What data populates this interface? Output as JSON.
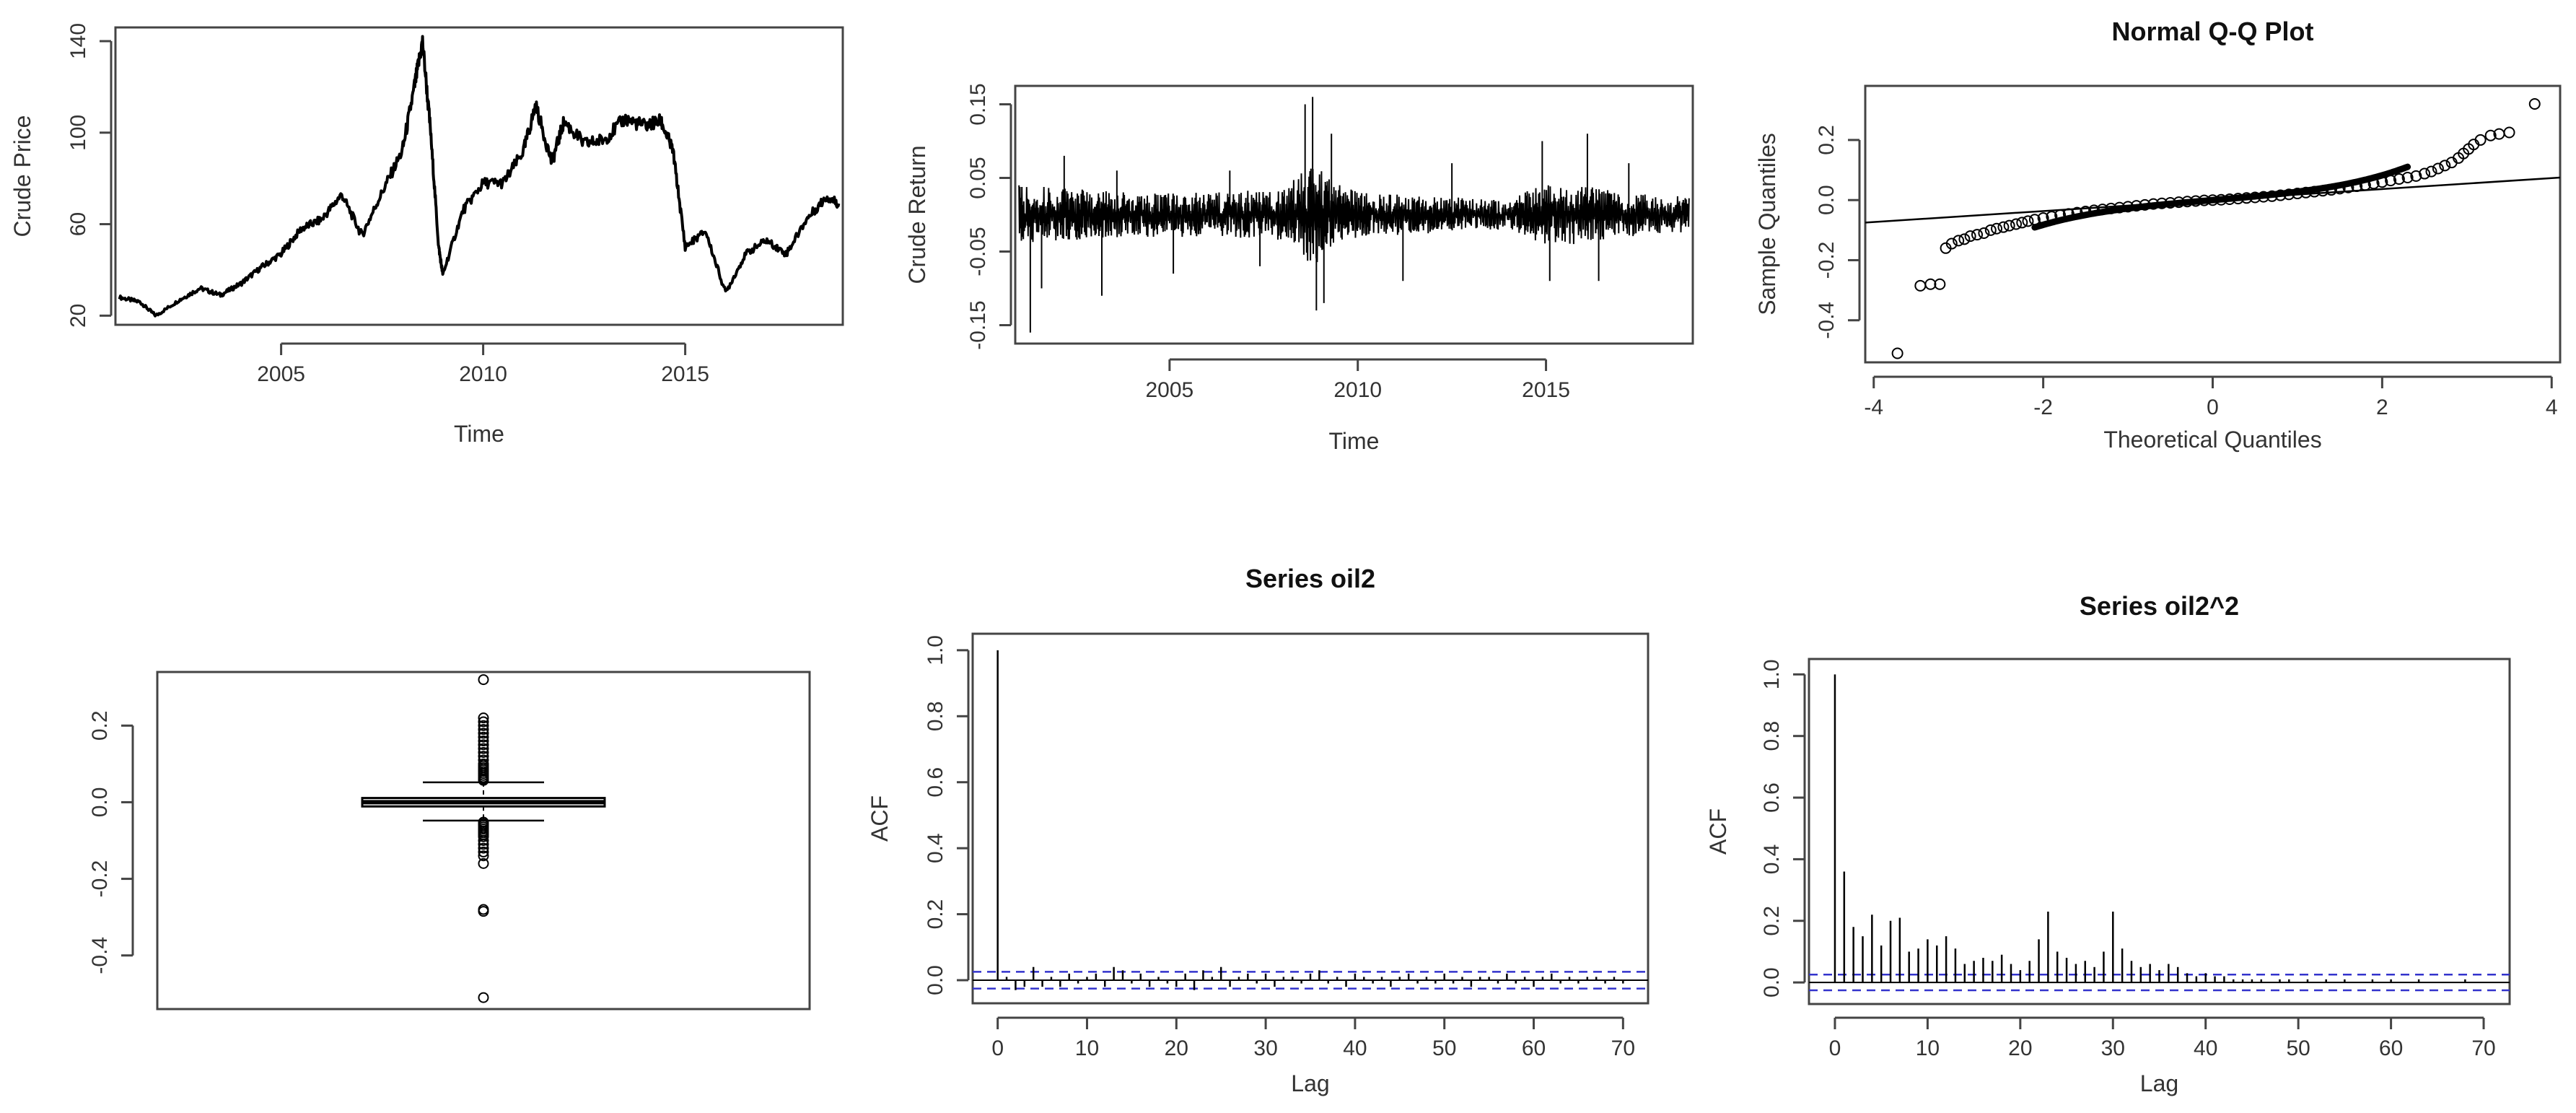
{
  "colors": {
    "ink": "#000000",
    "axis": "#444444",
    "ci": "#3333cc",
    "label": "#333333"
  },
  "chart_data": [
    {
      "id": "price",
      "type": "line",
      "title": "",
      "xlabel": "Time",
      "ylabel": "Crude Price",
      "xlim": [
        2000.9,
        2018.9
      ],
      "ylim": [
        16,
        146
      ],
      "xticks": [
        2005,
        2010,
        2015
      ],
      "yticks": [
        20,
        60,
        100,
        140
      ],
      "x": [
        2001.0,
        2001.5,
        2001.9,
        2002.5,
        2003.0,
        2003.5,
        2004.0,
        2004.5,
        2005.0,
        2005.5,
        2006.0,
        2006.5,
        2007.0,
        2007.5,
        2008.0,
        2008.3,
        2008.5,
        2008.7,
        2008.9,
        2009.0,
        2009.5,
        2010.0,
        2010.5,
        2011.0,
        2011.3,
        2011.7,
        2012.0,
        2012.5,
        2013.0,
        2013.5,
        2014.0,
        2014.4,
        2014.7,
        2015.0,
        2015.5,
        2016.0,
        2016.5,
        2017.0,
        2017.5,
        2018.0,
        2018.5,
        2018.8
      ],
      "y": [
        28,
        26,
        20,
        27,
        32,
        29,
        34,
        41,
        47,
        58,
        62,
        73,
        55,
        74,
        92,
        120,
        140,
        100,
        50,
        38,
        66,
        78,
        78,
        92,
        112,
        87,
        105,
        95,
        97,
        106,
        103,
        105,
        92,
        50,
        57,
        30,
        47,
        53,
        47,
        62,
        72,
        69
      ]
    },
    {
      "id": "returns",
      "type": "line",
      "title": "",
      "xlabel": "Time",
      "ylabel": "Crude Return",
      "xlim": [
        2000.9,
        2018.9
      ],
      "ylim": [
        -0.175,
        0.175
      ],
      "xticks": [
        2005,
        2010,
        2015
      ],
      "yticks": [
        -0.15,
        -0.05,
        0.05,
        0.15
      ],
      "band": [
        [
          2001,
          0.04
        ],
        [
          2002.5,
          0.035
        ],
        [
          2004,
          0.03
        ],
        [
          2006,
          0.03
        ],
        [
          2008,
          0.035
        ],
        [
          2008.8,
          0.07
        ],
        [
          2009.3,
          0.05
        ],
        [
          2010,
          0.03
        ],
        [
          2012,
          0.025
        ],
        [
          2014,
          0.02
        ],
        [
          2014.8,
          0.04
        ],
        [
          2016,
          0.04
        ],
        [
          2017,
          0.03
        ],
        [
          2018.8,
          0.025
        ]
      ],
      "spikes": [
        [
          2001.3,
          -0.16
        ],
        [
          2001.6,
          -0.1
        ],
        [
          2002.2,
          0.08
        ],
        [
          2003.2,
          -0.11
        ],
        [
          2003.6,
          0.06
        ],
        [
          2005.1,
          -0.08
        ],
        [
          2006.6,
          0.06
        ],
        [
          2007.4,
          -0.07
        ],
        [
          2008.6,
          0.15
        ],
        [
          2008.8,
          0.16
        ],
        [
          2008.9,
          -0.13
        ],
        [
          2009.1,
          -0.12
        ],
        [
          2009.3,
          0.11
        ],
        [
          2011.2,
          -0.09
        ],
        [
          2012.5,
          0.07
        ],
        [
          2014.9,
          0.1
        ],
        [
          2015.1,
          -0.09
        ],
        [
          2016.1,
          0.11
        ],
        [
          2016.4,
          -0.09
        ],
        [
          2017.2,
          0.07
        ]
      ]
    },
    {
      "id": "qq",
      "type": "scatter",
      "title": "Normal Q-Q Plot",
      "xlabel": "Theoretical Quantiles",
      "ylabel": "Sample Quantiles",
      "xlim": [
        -4.1,
        4.1
      ],
      "ylim": [
        -0.54,
        0.38
      ],
      "xticks": [
        -4,
        -2,
        0,
        2,
        4
      ],
      "yticks": [
        -0.4,
        -0.2,
        0.0,
        0.2
      ],
      "line": [
        [
          -4.1,
          -0.075
        ],
        [
          4.1,
          0.075
        ]
      ],
      "points": [
        [
          -3.72,
          -0.51
        ],
        [
          -3.45,
          -0.285
        ],
        [
          -3.33,
          -0.28
        ],
        [
          -3.22,
          -0.28
        ],
        [
          -3.15,
          -0.16
        ],
        [
          -3.08,
          -0.145
        ],
        [
          -3.0,
          -0.135
        ],
        [
          -2.93,
          -0.13
        ],
        [
          -2.86,
          -0.12
        ],
        [
          -2.78,
          -0.115
        ],
        [
          -2.7,
          -0.11
        ],
        [
          -2.62,
          -0.1
        ],
        [
          -2.55,
          -0.095
        ],
        [
          -2.47,
          -0.09
        ],
        [
          -2.4,
          -0.085
        ],
        [
          -2.32,
          -0.08
        ],
        [
          -2.25,
          -0.075
        ],
        [
          -2.18,
          -0.07
        ],
        [
          -2.1,
          -0.065
        ],
        [
          -2.0,
          -0.06
        ],
        [
          -1.9,
          -0.055
        ],
        [
          -1.8,
          -0.05
        ],
        [
          -1.7,
          -0.046
        ],
        [
          -1.6,
          -0.042
        ],
        [
          -1.5,
          -0.038
        ],
        [
          -1.4,
          -0.034
        ],
        [
          -1.3,
          -0.031
        ],
        [
          -1.2,
          -0.028
        ],
        [
          -1.1,
          -0.025
        ],
        [
          -1.0,
          -0.022
        ],
        [
          -0.9,
          -0.019
        ],
        [
          -0.8,
          -0.016
        ],
        [
          -0.7,
          -0.013
        ],
        [
          -0.6,
          -0.011
        ],
        [
          -0.5,
          -0.009
        ],
        [
          -0.4,
          -0.007
        ],
        [
          -0.3,
          -0.005
        ],
        [
          -0.2,
          -0.003
        ],
        [
          -0.1,
          -0.001
        ],
        [
          0.0,
          0.0
        ],
        [
          0.1,
          0.001
        ],
        [
          0.2,
          0.003
        ],
        [
          0.3,
          0.005
        ],
        [
          0.4,
          0.007
        ],
        [
          0.5,
          0.009
        ],
        [
          0.6,
          0.011
        ],
        [
          0.7,
          0.013
        ],
        [
          0.8,
          0.016
        ],
        [
          0.9,
          0.019
        ],
        [
          1.0,
          0.022
        ],
        [
          1.1,
          0.025
        ],
        [
          1.2,
          0.028
        ],
        [
          1.3,
          0.031
        ],
        [
          1.4,
          0.034
        ],
        [
          1.5,
          0.038
        ],
        [
          1.6,
          0.042
        ],
        [
          1.7,
          0.046
        ],
        [
          1.8,
          0.05
        ],
        [
          1.9,
          0.055
        ],
        [
          2.0,
          0.06
        ],
        [
          2.1,
          0.065
        ],
        [
          2.2,
          0.07
        ],
        [
          2.3,
          0.075
        ],
        [
          2.4,
          0.08
        ],
        [
          2.5,
          0.088
        ],
        [
          2.58,
          0.095
        ],
        [
          2.66,
          0.105
        ],
        [
          2.74,
          0.115
        ],
        [
          2.82,
          0.125
        ],
        [
          2.9,
          0.14
        ],
        [
          2.96,
          0.155
        ],
        [
          3.02,
          0.17
        ],
        [
          3.08,
          0.185
        ],
        [
          3.16,
          0.2
        ],
        [
          3.28,
          0.215
        ],
        [
          3.38,
          0.22
        ],
        [
          3.5,
          0.225
        ],
        [
          3.8,
          0.32
        ]
      ]
    },
    {
      "id": "box",
      "type": "box",
      "title": "",
      "ylim": [
        -0.54,
        0.34
      ],
      "yticks": [
        -0.4,
        -0.2,
        0.0,
        0.2
      ],
      "q1": -0.011,
      "median": 0.0,
      "q3": 0.011,
      "whisker_low": -0.048,
      "whisker_high": 0.052,
      "outliers": [
        0.32,
        0.22,
        0.21,
        0.2,
        0.19,
        0.18,
        0.17,
        0.16,
        0.15,
        0.14,
        0.13,
        0.12,
        0.11,
        0.1,
        0.095,
        0.09,
        0.085,
        0.08,
        0.075,
        0.07,
        0.065,
        0.06,
        0.057,
        -0.052,
        -0.056,
        -0.06,
        -0.065,
        -0.07,
        -0.075,
        -0.08,
        -0.085,
        -0.09,
        -0.1,
        -0.11,
        -0.12,
        -0.13,
        -0.14,
        -0.16,
        -0.28,
        -0.285,
        -0.51
      ]
    },
    {
      "id": "acf1",
      "type": "bar",
      "title": "Series  oil2",
      "xlabel": "Lag",
      "ylabel": "ACF",
      "xlim": [
        -2.8,
        72.8
      ],
      "ylim": [
        -0.07,
        1.05
      ],
      "xticks": [
        0,
        10,
        20,
        30,
        40,
        50,
        60,
        70
      ],
      "yticks": [
        0.0,
        0.2,
        0.4,
        0.6,
        0.8,
        1.0
      ],
      "ci": 0.0255,
      "values": [
        1.0,
        0.01,
        -0.03,
        -0.02,
        0.04,
        -0.02,
        0.01,
        -0.02,
        0.02,
        -0.01,
        0.01,
        0.02,
        -0.02,
        0.04,
        0.03,
        -0.01,
        0.02,
        -0.02,
        0.01,
        -0.01,
        -0.02,
        0.02,
        -0.03,
        0.03,
        0.01,
        0.04,
        -0.02,
        0.01,
        0.02,
        -0.01,
        0.02,
        -0.02,
        0.01,
        0.01,
        -0.01,
        0.02,
        0.03,
        -0.01,
        0.01,
        -0.02,
        0.02,
        0.01,
        -0.01,
        0.01,
        -0.02,
        0.01,
        0.02,
        -0.01,
        0.01,
        -0.01,
        0.02,
        -0.01,
        0.01,
        -0.02,
        0.01,
        0.01,
        -0.01,
        0.02,
        -0.01,
        0.01,
        -0.02,
        0.01,
        0.02,
        -0.01,
        0.01,
        -0.01,
        0.01,
        0.01,
        -0.01,
        0.01,
        -0.01
      ]
    },
    {
      "id": "acf2",
      "type": "bar",
      "title": "Series  oil2^2",
      "xlabel": "Lag",
      "ylabel": "ACF",
      "xlim": [
        -2.8,
        72.8
      ],
      "ylim": [
        -0.07,
        1.05
      ],
      "xticks": [
        0,
        10,
        20,
        30,
        40,
        50,
        60,
        70
      ],
      "yticks": [
        0.0,
        0.2,
        0.4,
        0.6,
        0.8,
        1.0
      ],
      "ci": 0.0255,
      "values": [
        1.0,
        0.36,
        0.18,
        0.15,
        0.22,
        0.12,
        0.2,
        0.21,
        0.1,
        0.11,
        0.14,
        0.12,
        0.15,
        0.11,
        0.06,
        0.07,
        0.08,
        0.07,
        0.09,
        0.06,
        0.04,
        0.07,
        0.14,
        0.23,
        0.1,
        0.08,
        0.06,
        0.07,
        0.05,
        0.1,
        0.23,
        0.11,
        0.07,
        0.05,
        0.06,
        0.04,
        0.06,
        0.05,
        0.03,
        0.02,
        0.03,
        0.02,
        0.02,
        0.01,
        0.01,
        0.01,
        0.01,
        0.0,
        0.01,
        0.01,
        0.0,
        0.01,
        0.0,
        0.01,
        0.0,
        0.01,
        0.0,
        0.0,
        0.01,
        0.0,
        0.01,
        0.0,
        0.0,
        0.01,
        0.0,
        0.0,
        0.0,
        0.0,
        0.01,
        0.0,
        0.0
      ]
    }
  ]
}
